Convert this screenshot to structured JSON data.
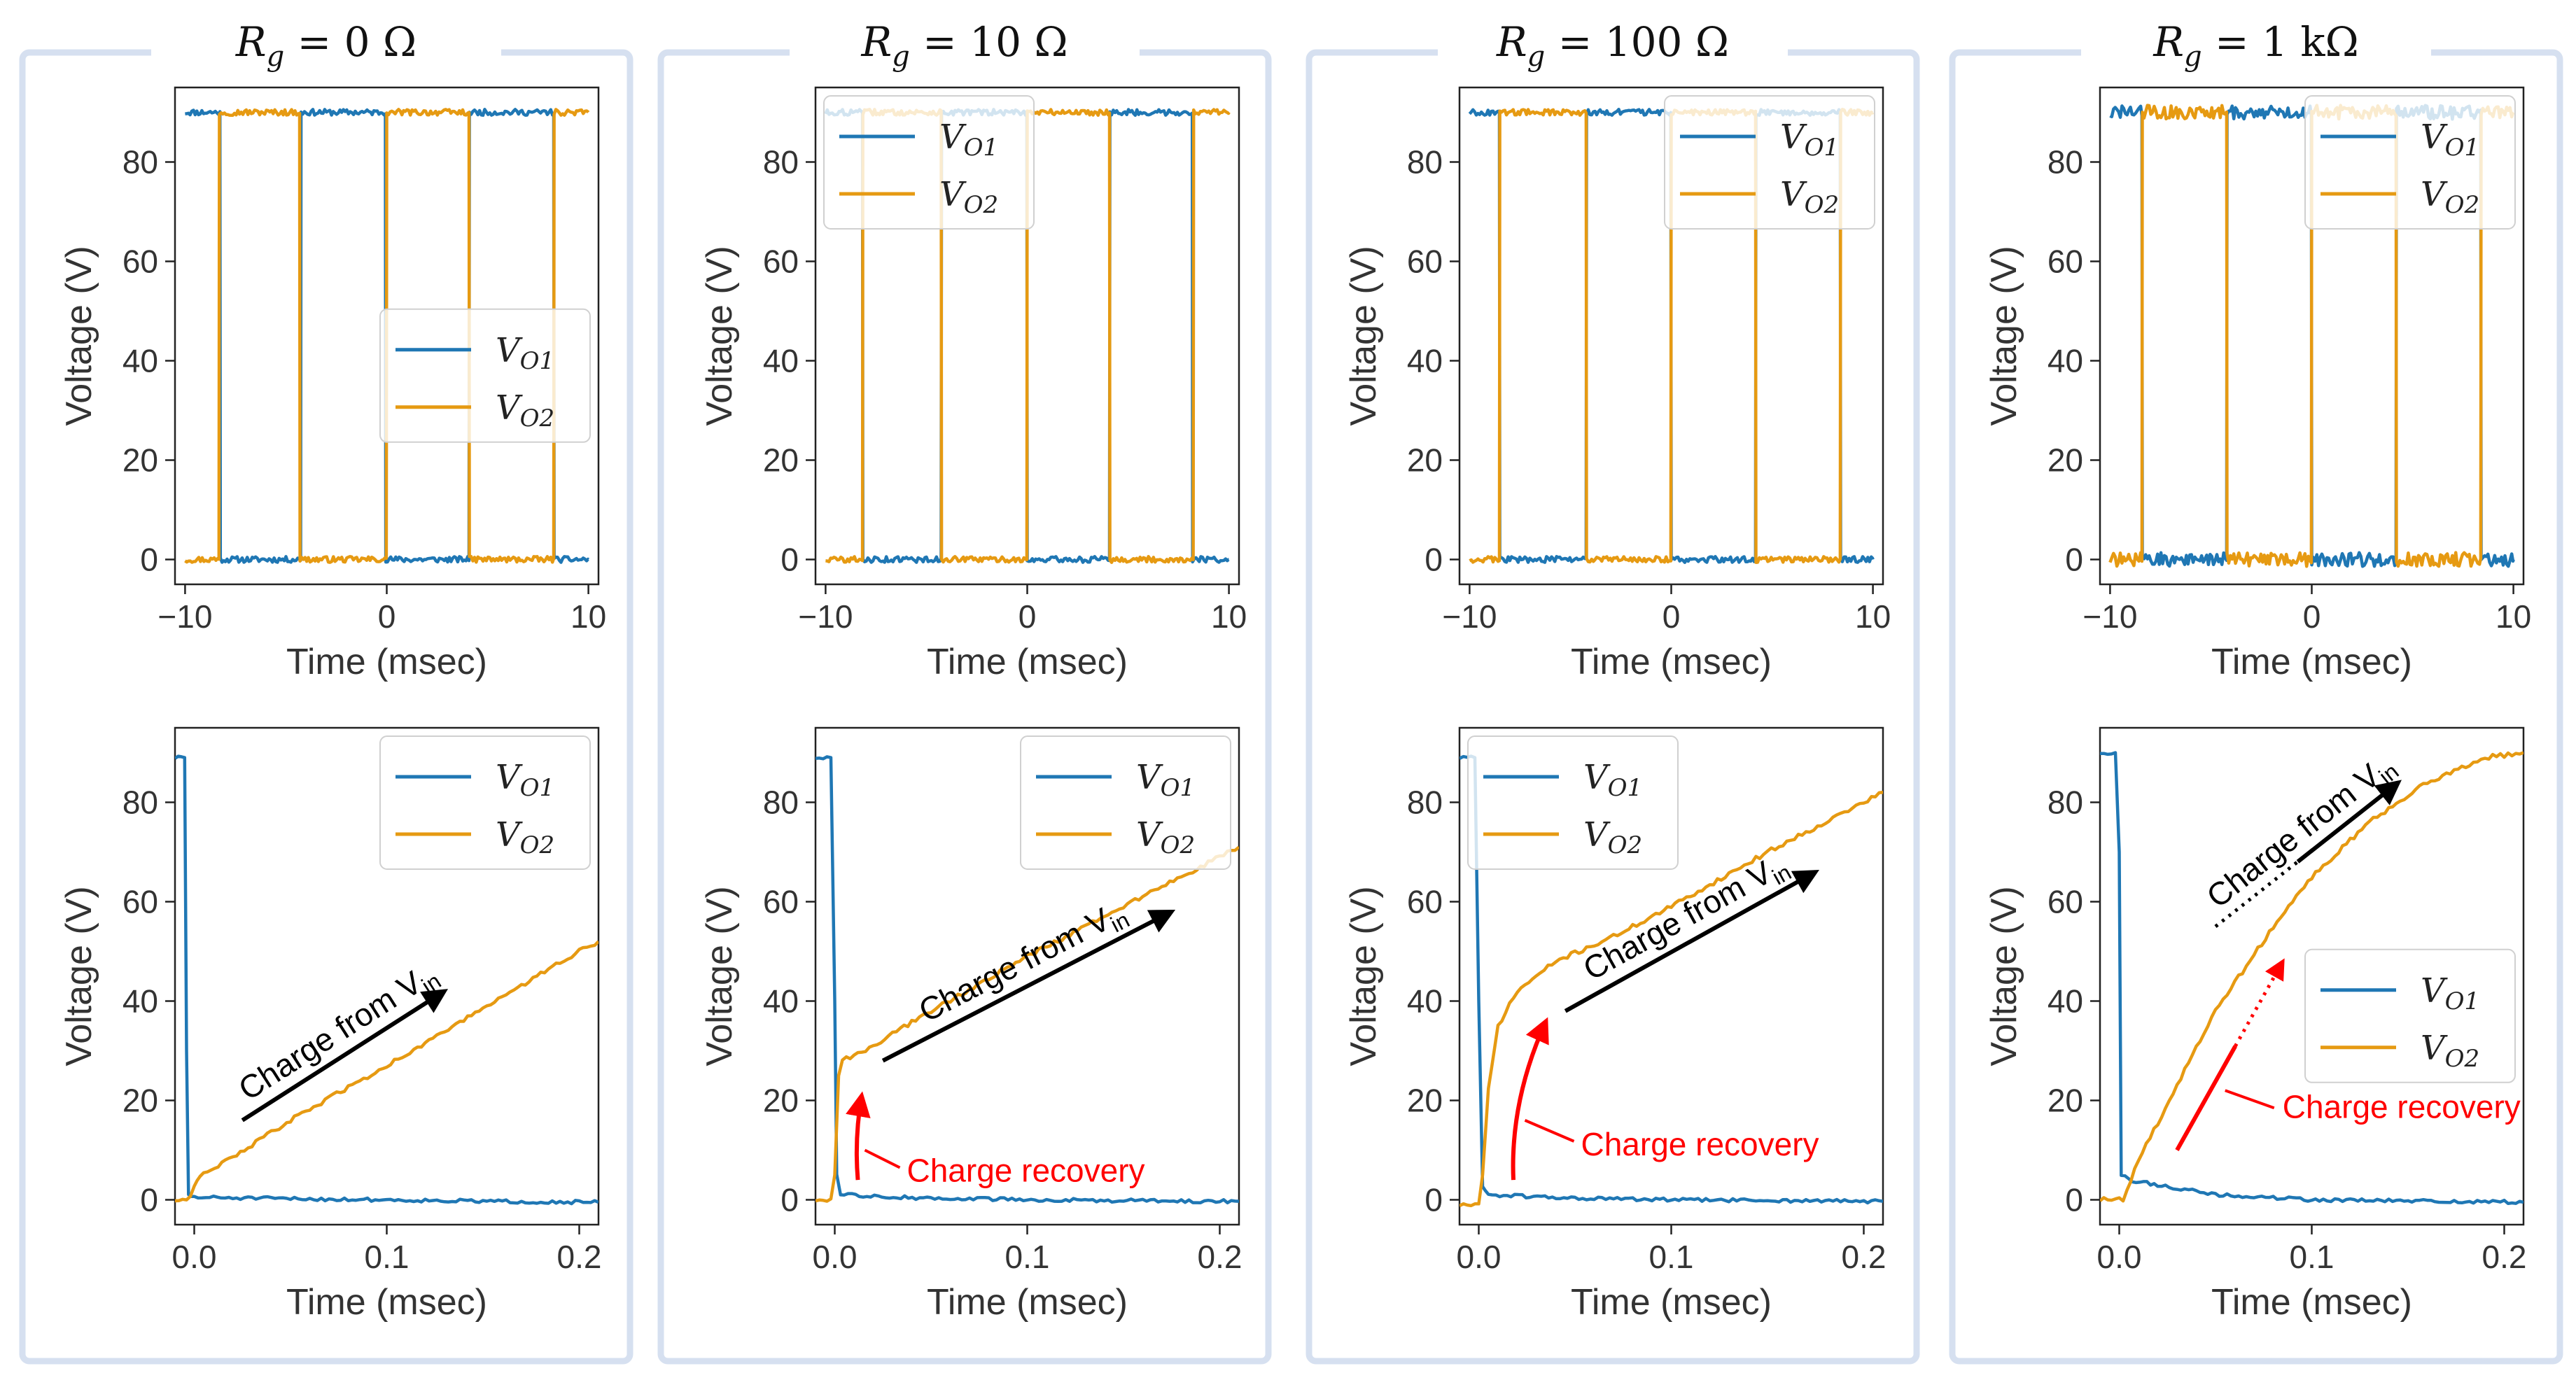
{
  "colors": {
    "vo1": "#1f77b4",
    "vo2": "#e69a12",
    "panel_border": "#d6e0f0",
    "annot_black": "#000000",
    "annot_red": "#ff0000"
  },
  "panels": [
    {
      "title": "R_g = 0 Ω",
      "title_sym": "R",
      "title_sub": "g",
      "title_rest": " = 0 Ω"
    },
    {
      "title": "R_g = 10 Ω",
      "title_sym": "R",
      "title_sub": "g",
      "title_rest": " = 10 Ω"
    },
    {
      "title": "R_g = 100 Ω",
      "title_sym": "R",
      "title_sub": "g",
      "title_rest": " = 100 Ω"
    },
    {
      "title": "R_g = 1 kΩ",
      "title_sym": "R",
      "title_sub": "g",
      "title_rest": " = 1 kΩ"
    }
  ],
  "legend": {
    "vo1": {
      "main": "V",
      "sub": "O1"
    },
    "vo2": {
      "main": "V",
      "sub": "O2"
    }
  },
  "annotations": {
    "charge_from_main": "Charge from V",
    "charge_from_sub": "in",
    "charge_recovery": "Charge recovery"
  },
  "chart_data": [
    {
      "type": "line",
      "panel": "R_g = 0 Ω",
      "row": "top",
      "xlabel": "Time (msec)",
      "ylabel": "Voltage (V)",
      "xlim": [
        -10.5,
        10.5
      ],
      "ylim": [
        -5,
        95
      ],
      "xticks": [
        -10,
        0,
        10
      ],
      "yticks": [
        0,
        20,
        40,
        60,
        80
      ],
      "legend_position": "center-right",
      "vo1_edges": [
        [
          -10,
          90
        ],
        [
          -8.25,
          0
        ],
        [
          -4.25,
          90
        ],
        [
          -0.05,
          0
        ],
        [
          4.1,
          90
        ],
        [
          8.3,
          0
        ],
        [
          10,
          0
        ]
      ],
      "vo2_edges": [
        [
          -10,
          0
        ],
        [
          -8.3,
          90
        ],
        [
          -4.3,
          0
        ],
        [
          0,
          90
        ],
        [
          4.1,
          0
        ],
        [
          8.3,
          90
        ],
        [
          10,
          90
        ]
      ],
      "noise": 0.6
    },
    {
      "type": "line",
      "panel": "R_g = 10 Ω",
      "row": "top",
      "xlabel": "Time (msec)",
      "ylabel": "Voltage (V)",
      "xlim": [
        -10.5,
        10.5
      ],
      "ylim": [
        -5,
        95
      ],
      "xticks": [
        -10,
        0,
        10
      ],
      "yticks": [
        0,
        20,
        40,
        60,
        80
      ],
      "legend_position": "upper-left",
      "vo1_edges": [
        [
          -10,
          90
        ],
        [
          -8.15,
          0
        ],
        [
          -4.25,
          90
        ],
        [
          0,
          0
        ],
        [
          4.1,
          90
        ],
        [
          8.2,
          0
        ],
        [
          10,
          0
        ]
      ],
      "vo2_edges": [
        [
          -10,
          0
        ],
        [
          -8.15,
          90
        ],
        [
          -4.25,
          0
        ],
        [
          0,
          90
        ],
        [
          4.1,
          0
        ],
        [
          8.25,
          90
        ],
        [
          10,
          90
        ]
      ],
      "noise": 0.6
    },
    {
      "type": "line",
      "panel": "R_g = 100 Ω",
      "row": "top",
      "xlabel": "Time (msec)",
      "ylabel": "Voltage (V)",
      "xlim": [
        -10.5,
        10.5
      ],
      "ylim": [
        -5,
        95
      ],
      "xticks": [
        -10,
        0,
        10
      ],
      "yticks": [
        0,
        20,
        40,
        60,
        80
      ],
      "legend_position": "upper-right",
      "vo1_edges": [
        [
          -10,
          90
        ],
        [
          -8.5,
          0
        ],
        [
          -4.2,
          90
        ],
        [
          0,
          0
        ],
        [
          4.2,
          90
        ],
        [
          8.4,
          0
        ],
        [
          10,
          0
        ]
      ],
      "vo2_edges": [
        [
          -10,
          0
        ],
        [
          -8.5,
          90
        ],
        [
          -4.2,
          0
        ],
        [
          0,
          90
        ],
        [
          4.2,
          0
        ],
        [
          8.4,
          90
        ],
        [
          10,
          90
        ]
      ],
      "noise": 0.6
    },
    {
      "type": "line",
      "panel": "R_g = 1 kΩ",
      "row": "top",
      "xlabel": "Time (msec)",
      "ylabel": "Voltage (V)",
      "xlim": [
        -10.5,
        10.5
      ],
      "ylim": [
        -5,
        95
      ],
      "xticks": [
        -10,
        0,
        10
      ],
      "yticks": [
        0,
        20,
        40,
        60,
        80
      ],
      "legend_position": "upper-right",
      "vo1_edges": [
        [
          -10,
          90
        ],
        [
          -8.4,
          0
        ],
        [
          -4.2,
          90
        ],
        [
          0,
          0
        ],
        [
          4.2,
          90
        ],
        [
          8.4,
          0
        ],
        [
          10,
          0
        ]
      ],
      "vo2_edges": [
        [
          -10,
          0
        ],
        [
          -8.4,
          90
        ],
        [
          -4.2,
          0
        ],
        [
          0,
          90
        ],
        [
          4.2,
          0
        ],
        [
          8.4,
          90
        ],
        [
          10,
          90
        ]
      ],
      "noise": 1.4
    },
    {
      "type": "line",
      "panel": "R_g = 0 Ω",
      "row": "bottom",
      "xlabel": "Time (msec)",
      "ylabel": "Voltage (V)",
      "xlim": [
        -0.01,
        0.21
      ],
      "ylim": [
        -5,
        95
      ],
      "xticks": [
        0.0,
        0.1,
        0.2
      ],
      "yticks": [
        0,
        20,
        40,
        60,
        80
      ],
      "legend_position": "upper-right",
      "vo1": [
        [
          -0.01,
          89
        ],
        [
          -0.005,
          89
        ],
        [
          -0.004,
          30
        ],
        [
          -0.003,
          1
        ],
        [
          0.0,
          0.5
        ],
        [
          0.05,
          0.2
        ],
        [
          0.1,
          0
        ],
        [
          0.15,
          -0.3
        ],
        [
          0.21,
          -0.5
        ]
      ],
      "vo2": [
        [
          -0.01,
          0
        ],
        [
          -0.002,
          0.5
        ],
        [
          0.0,
          3
        ],
        [
          0.003,
          5
        ],
        [
          0.02,
          8.5
        ],
        [
          0.05,
          16
        ],
        [
          0.1,
          27
        ],
        [
          0.15,
          38.5
        ],
        [
          0.2,
          50
        ],
        [
          0.21,
          52
        ]
      ],
      "annotations": [
        {
          "kind": "charge_from",
          "from": [
            0.025,
            16
          ],
          "to": [
            0.13,
            42
          ],
          "color": "black"
        }
      ]
    },
    {
      "type": "line",
      "panel": "R_g = 10 Ω",
      "row": "bottom",
      "xlabel": "Time (msec)",
      "ylabel": "Voltage (V)",
      "xlim": [
        -0.01,
        0.21
      ],
      "ylim": [
        -5,
        95
      ],
      "xticks": [
        0.0,
        0.1,
        0.2
      ],
      "yticks": [
        0,
        20,
        40,
        60,
        80
      ],
      "legend_position": "upper-right",
      "vo1": [
        [
          -0.01,
          89
        ],
        [
          -0.002,
          89
        ],
        [
          0.0,
          40
        ],
        [
          0.001,
          5
        ],
        [
          0.003,
          1
        ],
        [
          0.05,
          0.3
        ],
        [
          0.1,
          0
        ],
        [
          0.21,
          -0.3
        ]
      ],
      "vo2": [
        [
          -0.01,
          0
        ],
        [
          -0.002,
          0
        ],
        [
          0.0,
          5
        ],
        [
          0.002,
          25
        ],
        [
          0.004,
          28
        ],
        [
          0.02,
          31
        ],
        [
          0.05,
          38
        ],
        [
          0.1,
          49
        ],
        [
          0.15,
          59
        ],
        [
          0.21,
          71
        ]
      ],
      "annotations": [
        {
          "kind": "charge_from",
          "from": [
            0.025,
            28
          ],
          "to": [
            0.175,
            58
          ],
          "color": "black"
        },
        {
          "kind": "charge_recovery",
          "from": [
            0.012,
            4
          ],
          "to": [
            0.014,
            21
          ],
          "color": "red"
        }
      ]
    },
    {
      "type": "line",
      "panel": "R_g = 100 Ω",
      "row": "bottom",
      "xlabel": "Time (msec)",
      "ylabel": "Voltage (V)",
      "xlim": [
        -0.01,
        0.21
      ],
      "ylim": [
        -5,
        95
      ],
      "xticks": [
        0.0,
        0.1,
        0.2
      ],
      "yticks": [
        0,
        20,
        40,
        60,
        80
      ],
      "legend_position": "upper-left",
      "vo1": [
        [
          -0.01,
          89
        ],
        [
          -0.002,
          89
        ],
        [
          0.0,
          40
        ],
        [
          0.002,
          3
        ],
        [
          0.005,
          1
        ],
        [
          0.05,
          0.3
        ],
        [
          0.1,
          0
        ],
        [
          0.21,
          -0.3
        ]
      ],
      "vo2": [
        [
          -0.01,
          -1
        ],
        [
          0.0,
          -1
        ],
        [
          0.002,
          5
        ],
        [
          0.005,
          22
        ],
        [
          0.01,
          35
        ],
        [
          0.02,
          42
        ],
        [
          0.04,
          48
        ],
        [
          0.07,
          53
        ],
        [
          0.1,
          59
        ],
        [
          0.15,
          70
        ],
        [
          0.21,
          82
        ]
      ],
      "annotations": [
        {
          "kind": "charge_from",
          "from": [
            0.045,
            38
          ],
          "to": [
            0.175,
            66
          ],
          "color": "black"
        },
        {
          "kind": "charge_recovery",
          "from": [
            0.018,
            4
          ],
          "to": [
            0.035,
            36
          ],
          "color": "red"
        }
      ]
    },
    {
      "type": "line",
      "panel": "R_g = 1 kΩ",
      "row": "bottom",
      "xlabel": "Time (msec)",
      "ylabel": "Voltage (V)",
      "xlim": [
        -0.01,
        0.21
      ],
      "ylim": [
        -5,
        95
      ],
      "xticks": [
        0.0,
        0.1,
        0.2
      ],
      "yticks": [
        0,
        20,
        40,
        60,
        80
      ],
      "legend_position": "center-right",
      "vo1": [
        [
          -0.01,
          90
        ],
        [
          -0.002,
          90
        ],
        [
          0.0,
          70
        ],
        [
          0.001,
          5
        ],
        [
          0.005,
          4
        ],
        [
          0.02,
          3
        ],
        [
          0.05,
          1
        ],
        [
          0.1,
          0
        ],
        [
          0.21,
          -0.5
        ]
      ],
      "vo2": [
        [
          -0.01,
          0
        ],
        [
          0.002,
          0
        ],
        [
          0.01,
          8
        ],
        [
          0.03,
          23
        ],
        [
          0.05,
          38
        ],
        [
          0.08,
          55
        ],
        [
          0.1,
          65
        ],
        [
          0.13,
          76
        ],
        [
          0.16,
          84
        ],
        [
          0.19,
          89
        ],
        [
          0.21,
          90
        ]
      ],
      "annotations": [
        {
          "kind": "charge_from",
          "from": [
            0.05,
            55
          ],
          "to": [
            0.145,
            84
          ],
          "color": "black"
        },
        {
          "kind": "charge_recovery",
          "from": [
            0.03,
            10
          ],
          "to": [
            0.085,
            48
          ],
          "color": "red"
        }
      ]
    }
  ]
}
